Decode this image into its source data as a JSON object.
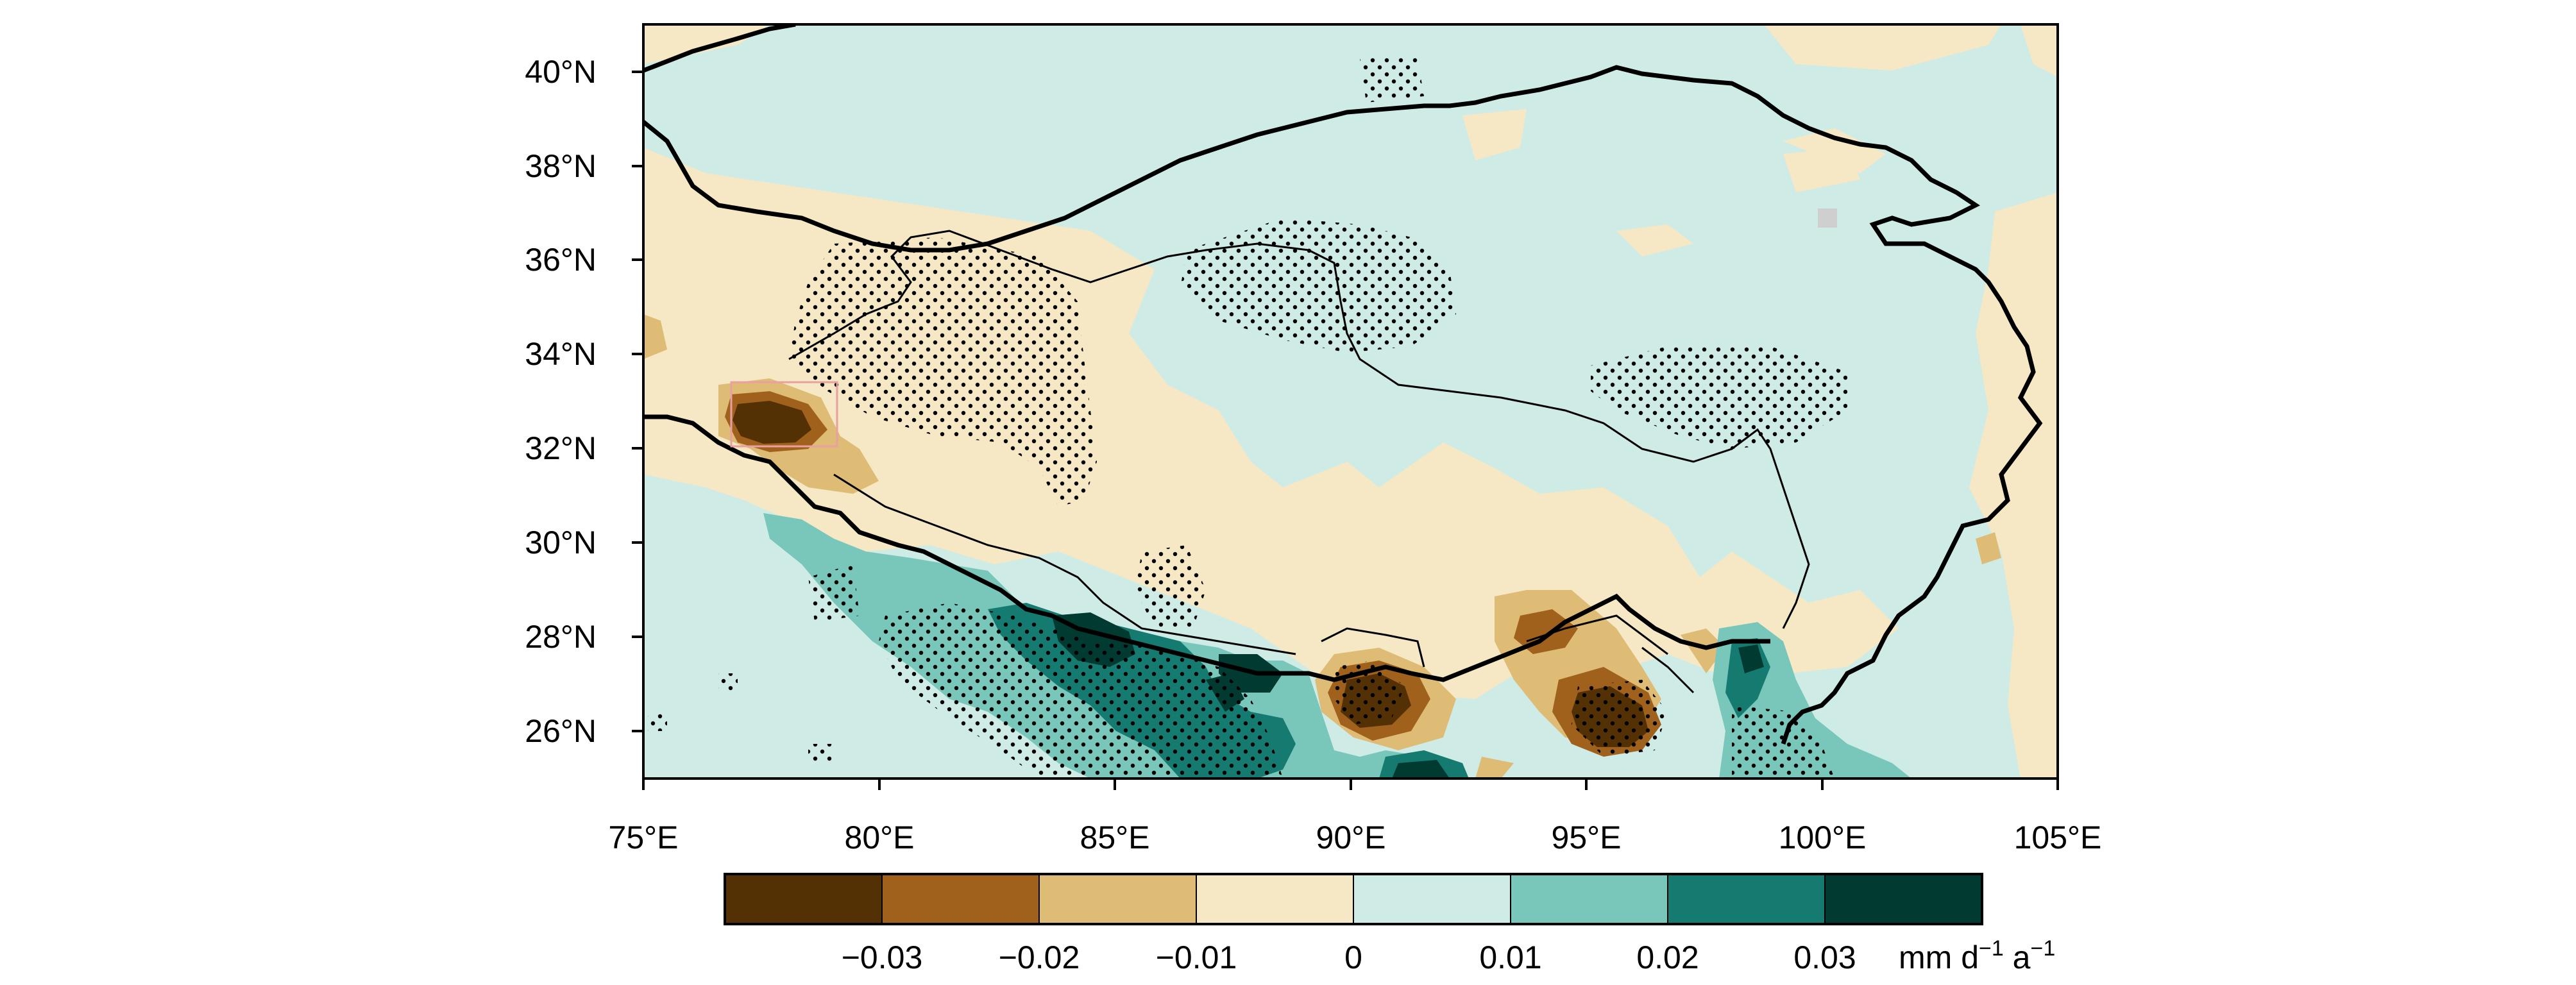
{
  "map": {
    "lon_range": [
      75,
      105
    ],
    "lat_range": [
      25,
      41
    ],
    "x_tick_labels": [
      "75°E",
      "80°E",
      "85°E",
      "90°E",
      "95°E",
      "100°E",
      "105°E"
    ],
    "y_tick_labels": [
      "26°N",
      "28°N",
      "30°N",
      "32°N",
      "34°N",
      "36°N",
      "38°N",
      "40°N"
    ],
    "stippling": "significance dots",
    "outline": "Tibetan Plateau boundary (thick) and country borders (thin)"
  },
  "colorbar": {
    "colors": [
      "#543005",
      "#a0611d",
      "#dfbc75",
      "#f6e8c4",
      "#cfebe6",
      "#79c7ba",
      "#157a70",
      "#013a30"
    ],
    "tick_labels": [
      "-0.03",
      "-0.02",
      "-0.01",
      "0",
      "0.01",
      "0.02",
      "0.03"
    ],
    "units_base": "mm d",
    "units_sup1": "-1",
    "units_mid": " a",
    "units_sup2": "-1"
  },
  "colors": {
    "background_land": "#cfebe6",
    "frame": "#000000",
    "marker": "#cfcfcf",
    "box": "#e8a0a0"
  }
}
